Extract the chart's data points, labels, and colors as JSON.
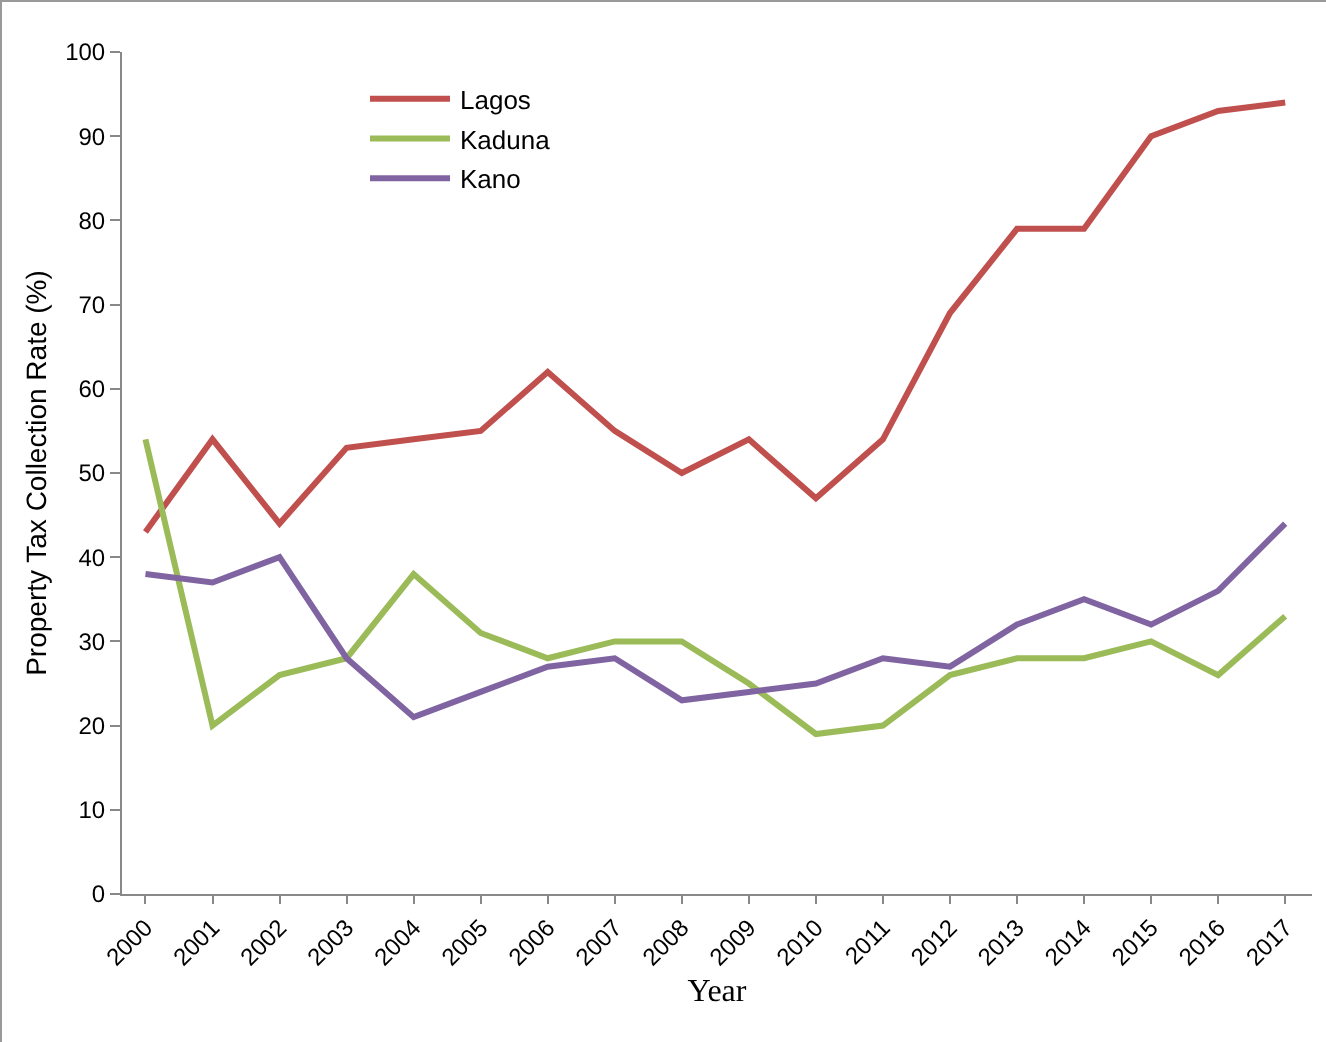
{
  "chart_data": {
    "type": "line",
    "xlabel": "Year",
    "ylabel": "Property Tax Collection Rate (%)",
    "categories": [
      "2000",
      "2001",
      "2002",
      "2003",
      "2004",
      "2005",
      "2006",
      "2007",
      "2008",
      "2009",
      "2010",
      "2011",
      "2012",
      "2013",
      "2014",
      "2015",
      "2016",
      "2017"
    ],
    "series": [
      {
        "name": "Lagos",
        "color": "#c0504d",
        "values": [
          43,
          54,
          44,
          53,
          54,
          55,
          62,
          55,
          50,
          54,
          47,
          54,
          69,
          79,
          79,
          90,
          93,
          94
        ]
      },
      {
        "name": "Kaduna",
        "color": "#9bbb59",
        "values": [
          54,
          20,
          26,
          28,
          38,
          31,
          28,
          30,
          30,
          25,
          19,
          20,
          26,
          28,
          28,
          30,
          26,
          33
        ]
      },
      {
        "name": "Kano",
        "color": "#8064a2",
        "values": [
          38,
          37,
          40,
          28,
          21,
          24,
          27,
          28,
          23,
          24,
          25,
          28,
          27,
          32,
          35,
          32,
          36,
          44
        ]
      }
    ],
    "ylim": [
      0,
      100
    ],
    "yticks": [
      0,
      10,
      20,
      30,
      40,
      50,
      60,
      70,
      80,
      90,
      100
    ],
    "grid": false,
    "legend": "top left",
    "marker": "none",
    "line_style": "solid"
  }
}
